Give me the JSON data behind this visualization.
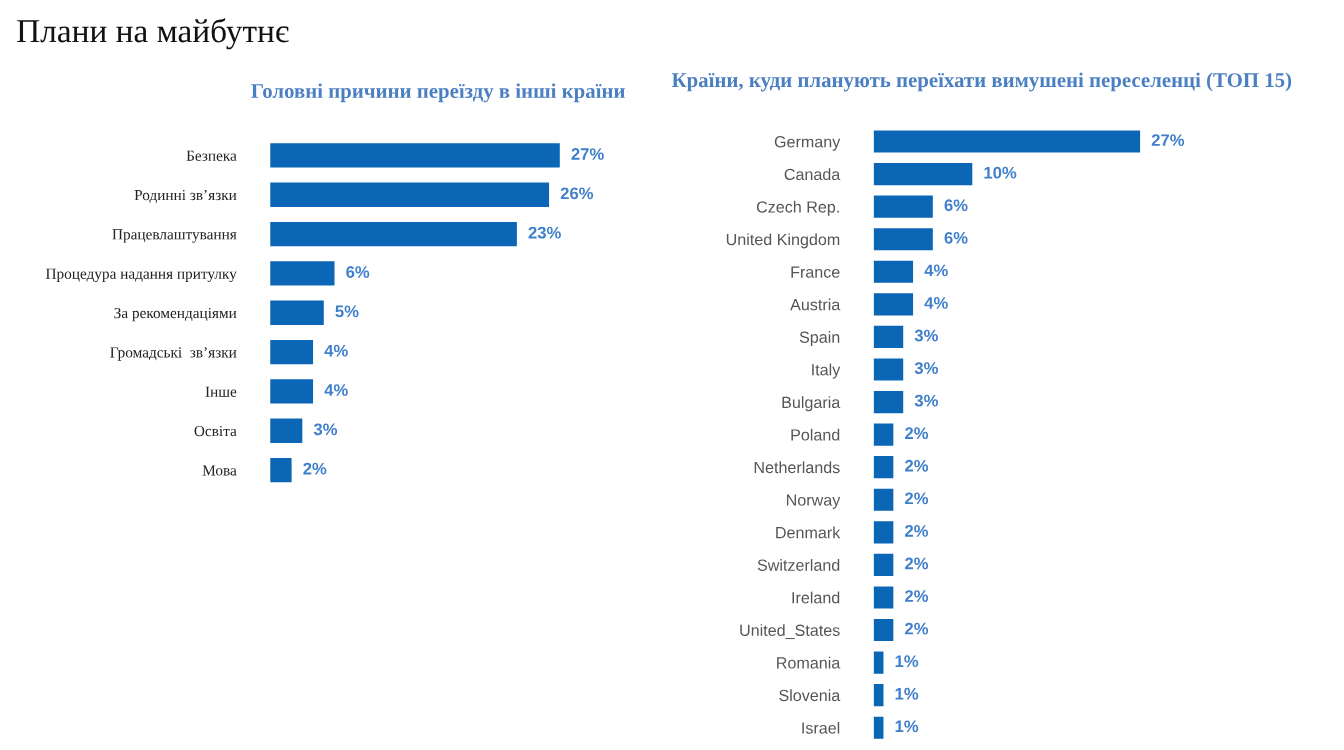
{
  "chart_data": [
    {
      "type": "bar",
      "orientation": "horizontal",
      "title": "Головні причини переїзду в інші країни",
      "annotations": [
        "Плани на майбутнє"
      ],
      "categories": [
        "Безпека",
        "Родинні зв’язки",
        "Працевлаштування",
        "Процедура надання притулку",
        "За рекомендаціями",
        "Громадські  зв’язки",
        "Інше",
        "Освіта",
        "Мова"
      ],
      "values": [
        27,
        26,
        23,
        6,
        5,
        4,
        4,
        3,
        2
      ],
      "color": "#0b66b5",
      "value_labels": [
        "27%",
        "26%",
        "23%",
        "6%",
        "5%",
        "4%",
        "4%",
        "3%",
        "2%"
      ],
      "tick_labels": "y",
      "grid": false,
      "legend": false
    },
    {
      "type": "bar",
      "orientation": "horizontal",
      "title": "Країни, куди планують переїхати вимушені переселенці (ТОП 15)",
      "categories": [
        "Germany",
        "Canada",
        "Czech Rep.",
        "United Kingdom",
        "France",
        "Austria",
        "Spain",
        "Italy",
        "Bulgaria",
        "Poland",
        "Netherlands",
        "Norway",
        "Denmark",
        "Switzerland",
        "Ireland",
        "United_States",
        "Romania",
        "Slovenia",
        "Israel"
      ],
      "values": [
        27,
        10,
        6,
        6,
        4,
        4,
        3,
        3,
        3,
        2,
        2,
        2,
        2,
        2,
        2,
        2,
        1,
        1,
        1
      ],
      "color": "#0b66b5",
      "value_labels": [
        "27%",
        "10%",
        "6%",
        "6%",
        "4%",
        "4%",
        "3%",
        "3%",
        "3%",
        "2%",
        "2%",
        "2%",
        "2%",
        "2%",
        "2%",
        "2%",
        "1%",
        "1%",
        "1%"
      ],
      "tick_labels": "y",
      "grid": false,
      "legend": false
    }
  ]
}
